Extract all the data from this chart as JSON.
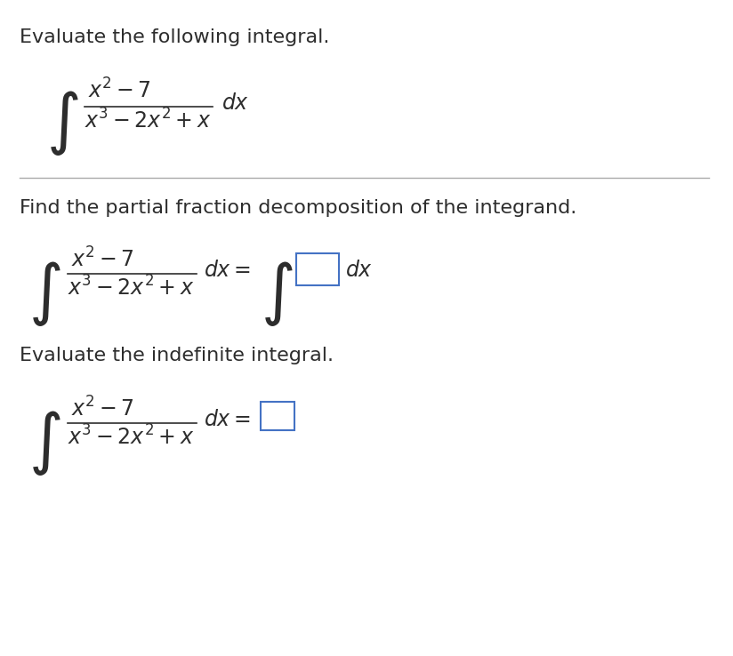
{
  "background_color": "#ffffff",
  "title_text": "Evaluate the following integral.",
  "section2_title": "Find the partial fraction decomposition of the integrand.",
  "section3_title": "Evaluate the indefinite integral.",
  "fig_width": 8.24,
  "fig_height": 7.38,
  "dpi": 100
}
